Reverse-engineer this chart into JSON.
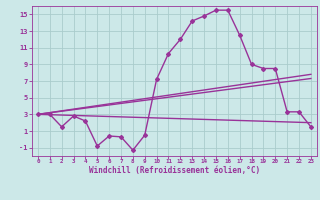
{
  "bg_color": "#cce8e8",
  "grid_color": "#aacccc",
  "line_color": "#993399",
  "xlabel": "Windchill (Refroidissement éolien,°C)",
  "ylim": [
    -2,
    16
  ],
  "xlim": [
    -0.5,
    23.5
  ],
  "yticks": [
    -1,
    1,
    3,
    5,
    7,
    9,
    11,
    13,
    15
  ],
  "xticks": [
    0,
    1,
    2,
    3,
    4,
    5,
    6,
    7,
    8,
    9,
    10,
    11,
    12,
    13,
    14,
    15,
    16,
    17,
    18,
    19,
    20,
    21,
    22,
    23
  ],
  "line1_x": [
    0,
    1,
    2,
    3,
    4,
    5,
    6,
    7,
    8,
    9,
    10,
    11,
    12,
    13,
    14,
    15,
    16,
    17,
    18,
    19,
    20,
    21,
    22,
    23
  ],
  "line1_y": [
    3.0,
    3.0,
    1.5,
    2.8,
    2.2,
    -0.8,
    0.4,
    0.3,
    -1.3,
    0.5,
    7.2,
    10.3,
    12.0,
    14.2,
    14.8,
    15.5,
    15.5,
    12.5,
    9.0,
    8.5,
    8.5,
    3.3,
    3.3,
    1.5
  ],
  "line2_x": [
    0,
    23
  ],
  "line2_y": [
    3.0,
    7.8
  ],
  "line3_x": [
    0,
    23
  ],
  "line3_y": [
    3.0,
    7.3
  ],
  "line4_x": [
    0,
    23
  ],
  "line4_y": [
    3.0,
    2.0
  ],
  "marker": "D",
  "markersize": 2.0,
  "linewidth": 1.0
}
